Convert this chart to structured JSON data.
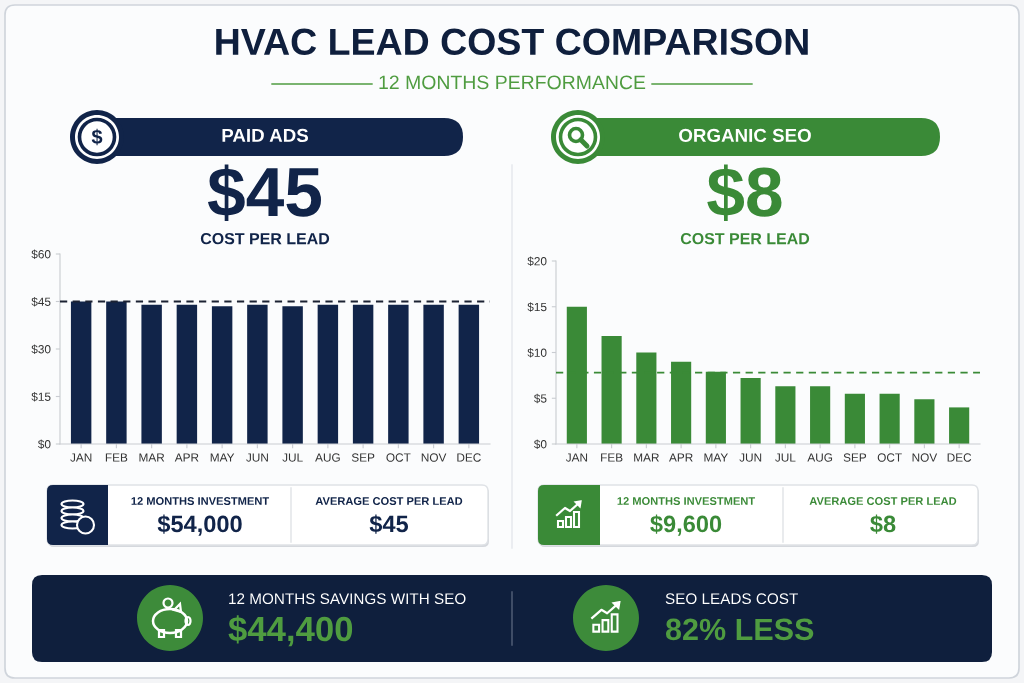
{
  "chart_data": [
    {
      "type": "other",
      "title": "HVAC LEAD COST COMPARISON",
      "subtitle": "12 MONTHS PERFORMANCE"
    },
    {
      "type": "bar",
      "title": "PAID ADS",
      "categories": [
        "JAN",
        "FEB",
        "MAR",
        "APR",
        "MAY",
        "JUN",
        "JUL",
        "AUG",
        "SEP",
        "OCT",
        "NOV",
        "DEC"
      ],
      "values": [
        45,
        45,
        44,
        44,
        43.5,
        44,
        43.5,
        44,
        44,
        44,
        44,
        44
      ],
      "color": "#112449",
      "ylim": [
        0,
        60
      ],
      "yticks": [
        {
          "value": 0,
          "label": "$0"
        },
        {
          "value": 15,
          "label": "$15"
        },
        {
          "value": 30,
          "label": "$30"
        },
        {
          "value": 45,
          "label": "$45"
        },
        {
          "value": 60,
          "label": "$60"
        }
      ],
      "ref_lines": [
        {
          "axis": "y",
          "value": 45,
          "color": "#1c2233",
          "line_style": "dashed"
        }
      ],
      "annotations": [
        "$45",
        "COST PER LEAD",
        "12 MONTHS INVESTMENT",
        "$54,000",
        "AVERAGE COST PER LEAD",
        "$45"
      ]
    },
    {
      "type": "bar",
      "title": "ORGANIC SEO",
      "categories": [
        "JAN",
        "FEB",
        "MAR",
        "APR",
        "MAY",
        "JUN",
        "JUL",
        "AUG",
        "SEP",
        "OCT",
        "NOV",
        "DEC"
      ],
      "values": [
        15,
        11.8,
        10,
        9,
        7.9,
        7.2,
        6.3,
        6.3,
        5.5,
        5.5,
        4.9,
        4
      ],
      "color": "#3a8a37",
      "ylim": [
        0,
        20
      ],
      "yticks": [
        {
          "value": 0,
          "label": "$0"
        },
        {
          "value": 5,
          "label": "$5"
        },
        {
          "value": 10,
          "label": "$10"
        },
        {
          "value": 15,
          "label": "$15"
        },
        {
          "value": 20,
          "label": "$20"
        }
      ],
      "ref_lines": [
        {
          "axis": "y",
          "value": 7.8,
          "color": "#3a8a37",
          "line_style": "dashed"
        }
      ],
      "annotations": [
        "$8",
        "COST PER LEAD",
        "12 MONTHS INVESTMENT",
        "$9,600",
        "AVERAGE COST PER LEAD",
        "$8"
      ]
    },
    {
      "type": "other",
      "annotations": [
        "12 MONTHS SAVINGS WITH SEO",
        "$44,400",
        "SEO LEADS COST",
        "82% LESS"
      ]
    }
  ]
}
